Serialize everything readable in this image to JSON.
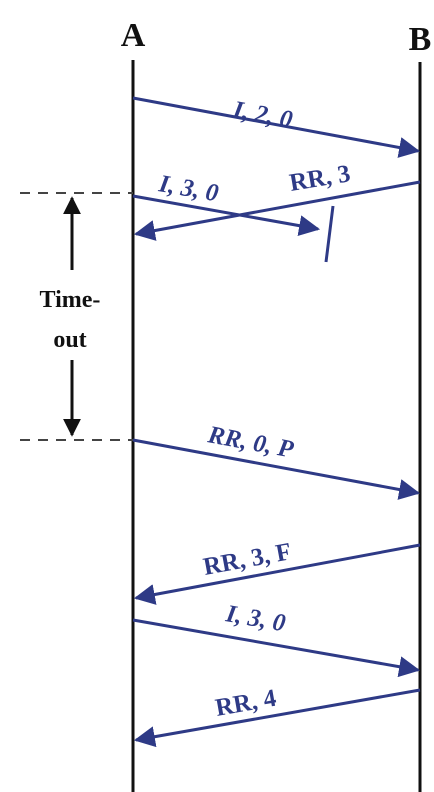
{
  "colors": {
    "timeline": "#111111",
    "message": "#2e3a86",
    "dashed": "#444444",
    "text": "#111111"
  },
  "stations": {
    "a": "A",
    "b": "B"
  },
  "messages": [
    {
      "label": "I, 2, 0",
      "from": "A",
      "to": "B"
    },
    {
      "label": "I, 3, 0",
      "from": "A",
      "to": "B",
      "lost": true
    },
    {
      "label": "RR, 3",
      "from": "B",
      "to": "A"
    },
    {
      "label": "RR, 0, P",
      "from": "A",
      "to": "B"
    },
    {
      "label": "RR, 3, F",
      "from": "B",
      "to": "A"
    },
    {
      "label": "I, 3, 0",
      "from": "A",
      "to": "B"
    },
    {
      "label": "RR, 4",
      "from": "B",
      "to": "A"
    }
  ],
  "timeout": {
    "line1": "Time-",
    "line2": "out"
  }
}
